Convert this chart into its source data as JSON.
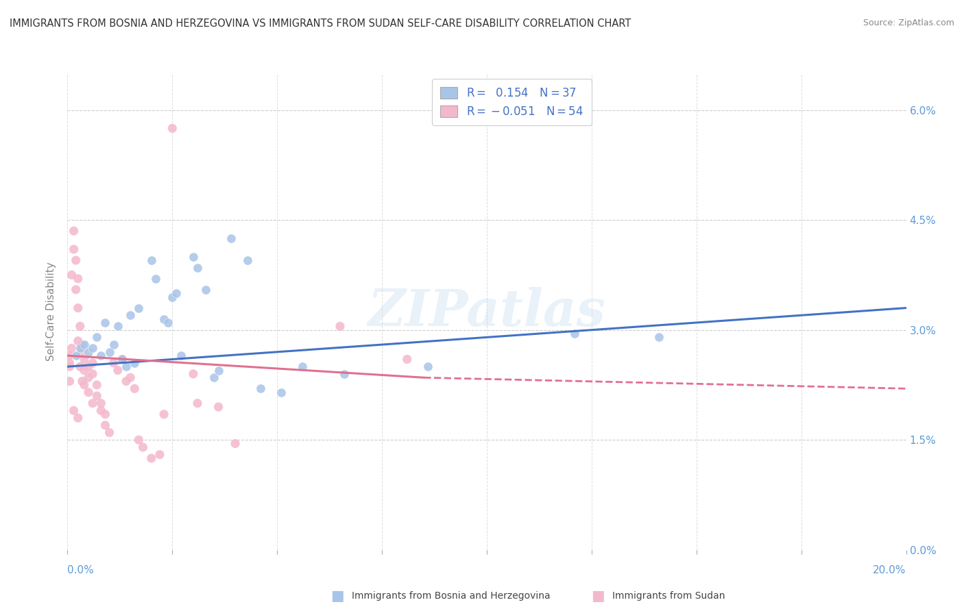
{
  "title": "IMMIGRANTS FROM BOSNIA AND HERZEGOVINA VS IMMIGRANTS FROM SUDAN SELF-CARE DISABILITY CORRELATION CHART",
  "source": "Source: ZipAtlas.com",
  "ylabel": "Self-Care Disability",
  "ytick_vals": [
    0.0,
    1.5,
    3.0,
    4.5,
    6.0
  ],
  "xlim": [
    0.0,
    20.0
  ],
  "ylim": [
    -0.3,
    7.2
  ],
  "plot_ylim": [
    0.0,
    6.5
  ],
  "color_bosnia": "#a8c4e8",
  "color_sudan": "#f4b8cc",
  "line_color_bosnia": "#4472c4",
  "line_color_sudan": "#e07090",
  "line_color_right_labels": "#5b9bd5",
  "watermark": "ZIPatlas",
  "bosnia_line": [
    0.0,
    20.0,
    2.5,
    3.3
  ],
  "sudan_line_solid": [
    0.0,
    8.5,
    2.65,
    2.35
  ],
  "sudan_line_dashed": [
    8.5,
    20.0,
    2.35,
    2.2
  ],
  "bosnia_points": [
    [
      0.2,
      2.65
    ],
    [
      0.3,
      2.75
    ],
    [
      0.4,
      2.8
    ],
    [
      0.5,
      2.7
    ],
    [
      0.6,
      2.75
    ],
    [
      0.7,
      2.9
    ],
    [
      0.8,
      2.65
    ],
    [
      0.9,
      3.1
    ],
    [
      1.0,
      2.7
    ],
    [
      1.1,
      2.8
    ],
    [
      1.2,
      3.05
    ],
    [
      1.3,
      2.6
    ],
    [
      1.4,
      2.5
    ],
    [
      1.5,
      3.2
    ],
    [
      1.6,
      2.55
    ],
    [
      1.7,
      3.3
    ],
    [
      2.0,
      3.95
    ],
    [
      2.1,
      3.7
    ],
    [
      2.3,
      3.15
    ],
    [
      2.4,
      3.1
    ],
    [
      2.5,
      3.45
    ],
    [
      2.6,
      3.5
    ],
    [
      2.7,
      2.65
    ],
    [
      3.0,
      4.0
    ],
    [
      3.1,
      3.85
    ],
    [
      3.3,
      3.55
    ],
    [
      3.5,
      2.35
    ],
    [
      3.6,
      2.45
    ],
    [
      3.9,
      4.25
    ],
    [
      4.3,
      3.95
    ],
    [
      4.6,
      2.2
    ],
    [
      5.1,
      2.15
    ],
    [
      5.6,
      2.5
    ],
    [
      6.6,
      2.4
    ],
    [
      8.6,
      2.5
    ],
    [
      12.1,
      2.95
    ],
    [
      14.1,
      2.9
    ]
  ],
  "sudan_points": [
    [
      0.05,
      2.5
    ],
    [
      0.05,
      2.65
    ],
    [
      0.05,
      2.3
    ],
    [
      0.05,
      2.55
    ],
    [
      0.1,
      2.75
    ],
    [
      0.1,
      3.75
    ],
    [
      0.15,
      4.35
    ],
    [
      0.15,
      4.1
    ],
    [
      0.2,
      3.95
    ],
    [
      0.2,
      3.55
    ],
    [
      0.25,
      3.7
    ],
    [
      0.25,
      3.3
    ],
    [
      0.25,
      2.85
    ],
    [
      0.3,
      3.05
    ],
    [
      0.3,
      2.5
    ],
    [
      0.35,
      2.8
    ],
    [
      0.35,
      2.7
    ],
    [
      0.35,
      2.3
    ],
    [
      0.4,
      2.45
    ],
    [
      0.4,
      2.6
    ],
    [
      0.4,
      2.25
    ],
    [
      0.5,
      2.5
    ],
    [
      0.5,
      2.35
    ],
    [
      0.5,
      2.15
    ],
    [
      0.6,
      2.4
    ],
    [
      0.6,
      2.55
    ],
    [
      0.6,
      2.0
    ],
    [
      0.7,
      2.25
    ],
    [
      0.7,
      2.1
    ],
    [
      0.8,
      2.0
    ],
    [
      0.8,
      1.9
    ],
    [
      0.9,
      1.85
    ],
    [
      0.9,
      1.7
    ],
    [
      1.0,
      1.6
    ],
    [
      1.1,
      2.55
    ],
    [
      1.2,
      2.45
    ],
    [
      1.3,
      2.6
    ],
    [
      1.4,
      2.3
    ],
    [
      1.5,
      2.35
    ],
    [
      1.6,
      2.2
    ],
    [
      1.7,
      1.5
    ],
    [
      1.8,
      1.4
    ],
    [
      2.0,
      1.25
    ],
    [
      2.2,
      1.3
    ],
    [
      2.3,
      1.85
    ],
    [
      2.5,
      5.75
    ],
    [
      3.0,
      2.4
    ],
    [
      3.1,
      2.0
    ],
    [
      3.6,
      1.95
    ],
    [
      4.0,
      1.45
    ],
    [
      6.5,
      3.05
    ],
    [
      8.1,
      2.6
    ],
    [
      0.15,
      1.9
    ],
    [
      0.25,
      1.8
    ]
  ]
}
